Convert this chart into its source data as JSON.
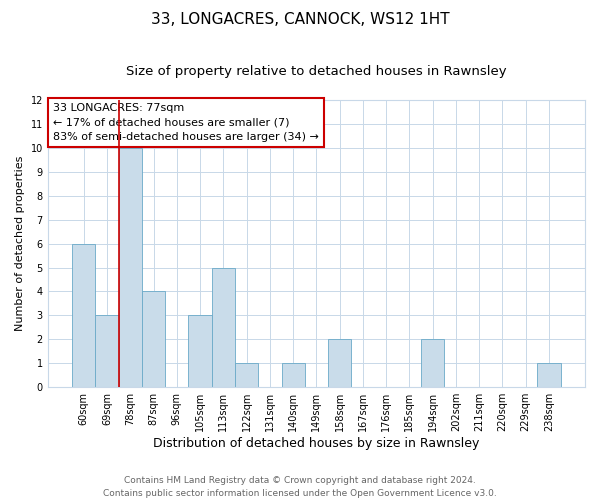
{
  "title": "33, LONGACRES, CANNOCK, WS12 1HT",
  "subtitle": "Size of property relative to detached houses in Rawnsley",
  "xlabel": "Distribution of detached houses by size in Rawnsley",
  "ylabel": "Number of detached properties",
  "bar_labels": [
    "60sqm",
    "69sqm",
    "78sqm",
    "87sqm",
    "96sqm",
    "105sqm",
    "113sqm",
    "122sqm",
    "131sqm",
    "140sqm",
    "149sqm",
    "158sqm",
    "167sqm",
    "176sqm",
    "185sqm",
    "194sqm",
    "202sqm",
    "211sqm",
    "220sqm",
    "229sqm",
    "238sqm"
  ],
  "bar_values": [
    6,
    3,
    10,
    4,
    0,
    3,
    5,
    1,
    0,
    1,
    0,
    2,
    0,
    0,
    0,
    2,
    0,
    0,
    0,
    0,
    1
  ],
  "bar_color": "#c9dcea",
  "bar_edge_color": "#6aaac8",
  "highlight_bar_index": 2,
  "highlight_line_color": "#cc0000",
  "ylim": [
    0,
    12
  ],
  "yticks": [
    0,
    1,
    2,
    3,
    4,
    5,
    6,
    7,
    8,
    9,
    10,
    11,
    12
  ],
  "annotation_text": "33 LONGACRES: 77sqm\n← 17% of detached houses are smaller (7)\n83% of semi-detached houses are larger (34) →",
  "annotation_box_color": "#ffffff",
  "annotation_box_edge_color": "#cc0000",
  "footnote1": "Contains HM Land Registry data © Crown copyright and database right 2024.",
  "footnote2": "Contains public sector information licensed under the Open Government Licence v3.0.",
  "background_color": "#ffffff",
  "grid_color": "#c8d8e8",
  "title_fontsize": 11,
  "subtitle_fontsize": 9.5,
  "xlabel_fontsize": 9,
  "ylabel_fontsize": 8,
  "tick_fontsize": 7,
  "annotation_fontsize": 8,
  "footnote_fontsize": 6.5
}
